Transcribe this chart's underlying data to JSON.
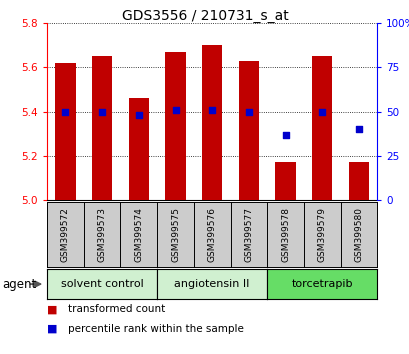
{
  "title": "GDS3556 / 210731_s_at",
  "samples": [
    "GSM399572",
    "GSM399573",
    "GSM399574",
    "GSM399575",
    "GSM399576",
    "GSM399577",
    "GSM399578",
    "GSM399579",
    "GSM399580"
  ],
  "bar_values": [
    5.62,
    5.65,
    5.46,
    5.67,
    5.7,
    5.63,
    5.17,
    5.65,
    5.17
  ],
  "bar_base": 5.0,
  "percentile_values": [
    50,
    50,
    48,
    51,
    51,
    50,
    37,
    50,
    40
  ],
  "ylim_left": [
    5.0,
    5.8
  ],
  "ylim_right": [
    0,
    100
  ],
  "yticks_left": [
    5.0,
    5.2,
    5.4,
    5.6,
    5.8
  ],
  "yticks_right": [
    0,
    25,
    50,
    75,
    100
  ],
  "ytick_labels_right": [
    "0",
    "25",
    "50",
    "75",
    "100%"
  ],
  "bar_color": "#c00000",
  "dot_color": "#0000cc",
  "bg_color": "#ffffff",
  "plot_bg_color": "#ffffff",
  "sample_box_color": "#cccccc",
  "agent_groups": [
    {
      "label": "solvent control",
      "start": 0,
      "end": 3,
      "color": "#d0f0d0"
    },
    {
      "label": "angiotensin II",
      "start": 3,
      "end": 6,
      "color": "#d0f0d0"
    },
    {
      "label": "torcetrapib",
      "start": 6,
      "end": 9,
      "color": "#66dd66"
    }
  ],
  "agent_label": "agent",
  "legend_bar_label": "transformed count",
  "legend_dot_label": "percentile rank within the sample",
  "title_fontsize": 10,
  "tick_fontsize": 7.5,
  "sample_fontsize": 6.5,
  "agent_fontsize": 8,
  "legend_fontsize": 7.5
}
